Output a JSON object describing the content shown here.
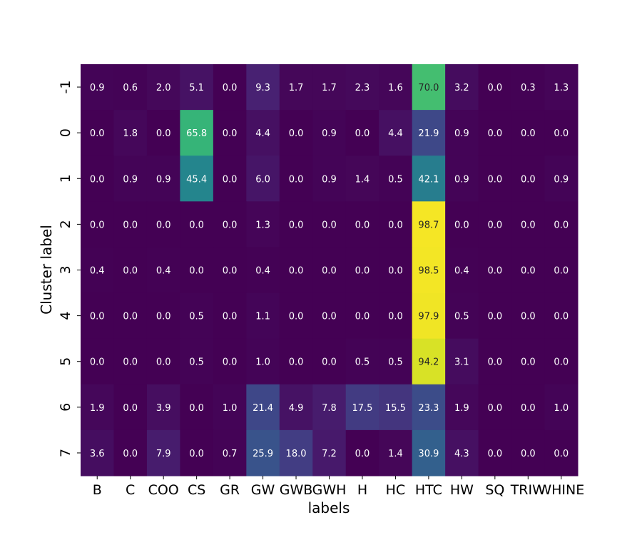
{
  "chart_data": {
    "type": "heatmap",
    "xlabel": "labels",
    "ylabel": "Cluster label",
    "colormap": "viridis",
    "value_range": [
      0,
      100
    ],
    "x_categories": [
      "B",
      "C",
      "COO",
      "CS",
      "GR",
      "GW",
      "GWB",
      "GWH",
      "H",
      "HC",
      "HTC",
      "HW",
      "SQ",
      "TRIW",
      "WHINE"
    ],
    "y_categories": [
      "-1",
      "0",
      "1",
      "2",
      "3",
      "4",
      "5",
      "6",
      "7"
    ],
    "values": [
      [
        0.9,
        0.6,
        2.0,
        5.1,
        0.0,
        9.3,
        1.7,
        1.7,
        2.3,
        1.6,
        70.0,
        3.2,
        0.0,
        0.3,
        1.3
      ],
      [
        0.0,
        1.8,
        0.0,
        65.8,
        0.0,
        4.4,
        0.0,
        0.9,
        0.0,
        4.4,
        21.9,
        0.9,
        0.0,
        0.0,
        0.0
      ],
      [
        0.0,
        0.9,
        0.9,
        45.4,
        0.0,
        6.0,
        0.0,
        0.9,
        1.4,
        0.5,
        42.1,
        0.9,
        0.0,
        0.0,
        0.9
      ],
      [
        0.0,
        0.0,
        0.0,
        0.0,
        0.0,
        1.3,
        0.0,
        0.0,
        0.0,
        0.0,
        98.7,
        0.0,
        0.0,
        0.0,
        0.0
      ],
      [
        0.4,
        0.0,
        0.4,
        0.0,
        0.0,
        0.4,
        0.0,
        0.0,
        0.0,
        0.0,
        98.5,
        0.4,
        0.0,
        0.0,
        0.0
      ],
      [
        0.0,
        0.0,
        0.0,
        0.5,
        0.0,
        1.1,
        0.0,
        0.0,
        0.0,
        0.0,
        97.9,
        0.5,
        0.0,
        0.0,
        0.0
      ],
      [
        0.0,
        0.0,
        0.0,
        0.5,
        0.0,
        1.0,
        0.0,
        0.0,
        0.5,
        0.5,
        94.2,
        3.1,
        0.0,
        0.0,
        0.0
      ],
      [
        1.9,
        0.0,
        3.9,
        0.0,
        1.0,
        21.4,
        4.9,
        7.8,
        17.5,
        15.5,
        23.3,
        1.9,
        0.0,
        0.0,
        1.0
      ],
      [
        3.6,
        0.0,
        7.9,
        0.0,
        0.7,
        25.9,
        18.0,
        7.2,
        0.0,
        1.4,
        30.9,
        4.3,
        0.0,
        0.0,
        0.0
      ]
    ]
  }
}
